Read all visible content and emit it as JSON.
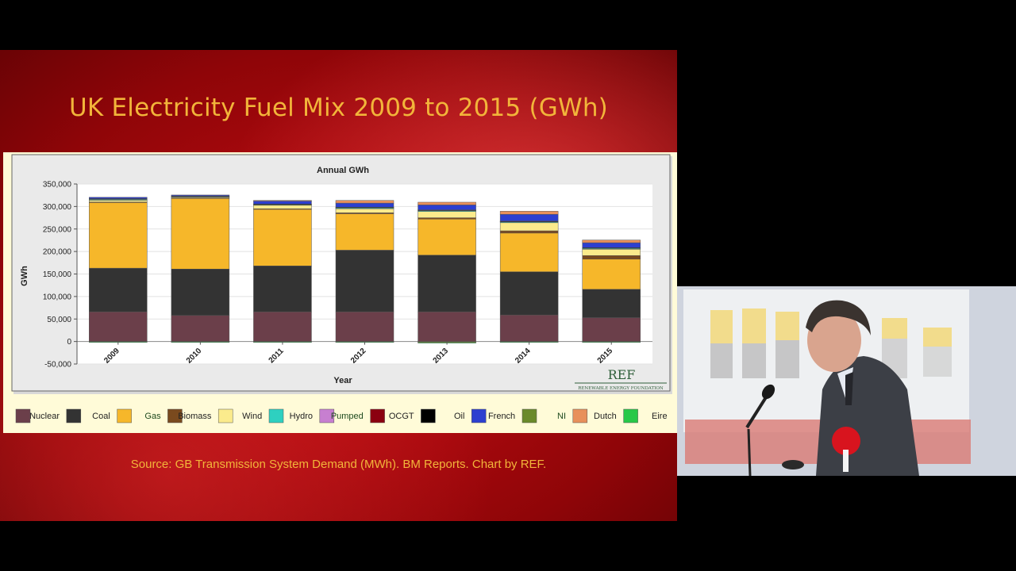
{
  "slide": {
    "title": "UK Electricity Fuel Mix 2009 to 2015 (GWh)",
    "source": "Source: GB Transmission System Demand (MWh). BM Reports. Chart by REF.",
    "logo_text": "REF",
    "logo_subtext": "RENEWABLE ENERGY FOUNDATION"
  },
  "chart_data": {
    "type": "bar",
    "stacked": true,
    "title": "Annual GWh",
    "xlabel": "Year",
    "ylabel": "GWh",
    "ylim": [
      -50000,
      350000
    ],
    "yticks": [
      -50000,
      0,
      50000,
      100000,
      150000,
      200000,
      250000,
      300000,
      350000
    ],
    "ytick_labels": [
      "-50,000",
      "0",
      "50,000",
      "100,000",
      "150,000",
      "200,000",
      "250,000",
      "300,000",
      "350,000"
    ],
    "grid": true,
    "legend_position": "bottom",
    "categories": [
      "2009",
      "2010",
      "2011",
      "2012",
      "2013",
      "2014",
      "2015"
    ],
    "series": [
      {
        "name": "Nuclear",
        "color": "#6b3f4a",
        "values": [
          66000,
          58000,
          66000,
          66000,
          66000,
          59000,
          53000
        ]
      },
      {
        "name": "Coal",
        "color": "#333333",
        "values": [
          97000,
          103000,
          102000,
          137000,
          126000,
          96000,
          63000
        ]
      },
      {
        "name": "Gas",
        "color": "#f6b72a",
        "values": [
          146000,
          157000,
          126000,
          81000,
          80000,
          86000,
          67000
        ]
      },
      {
        "name": "Biomass",
        "color": "#7a4a1e",
        "values": [
          1000,
          1000,
          1000,
          2000,
          3000,
          5000,
          8000
        ]
      },
      {
        "name": "Wind",
        "color": "#fbeb8c",
        "values": [
          4000,
          2000,
          8000,
          9000,
          14000,
          18000,
          14000
        ]
      },
      {
        "name": "Hydro",
        "color": "#2ed0c0",
        "values": [
          2000,
          1000,
          1000,
          2000,
          2000,
          2000,
          2000
        ]
      },
      {
        "name": "Pumped",
        "color": "#c77fd0",
        "values": [
          1000,
          1000,
          1000,
          1000,
          1000,
          1000,
          1000
        ]
      },
      {
        "name": "OCGT",
        "color": "#8b0010",
        "values": [
          0,
          0,
          0,
          0,
          0,
          0,
          0
        ]
      },
      {
        "name": "Oil",
        "color": "#000000",
        "values": [
          500,
          500,
          500,
          500,
          500,
          500,
          500
        ]
      },
      {
        "name": "French",
        "color": "#2c3fd0",
        "values": [
          3000,
          2000,
          7000,
          9000,
          11000,
          15000,
          11000
        ]
      },
      {
        "name": "NI",
        "color": "#6a8a2a",
        "values": [
          -500,
          -500,
          -500,
          -500,
          -2000,
          -500,
          -500
        ]
      },
      {
        "name": "Dutch",
        "color": "#e8905a",
        "values": [
          0,
          0,
          1000,
          6000,
          6000,
          7000,
          6000
        ]
      },
      {
        "name": "Eire",
        "color": "#28c848",
        "values": [
          -200,
          -200,
          -200,
          -500,
          -500,
          -200,
          -200
        ]
      }
    ]
  }
}
